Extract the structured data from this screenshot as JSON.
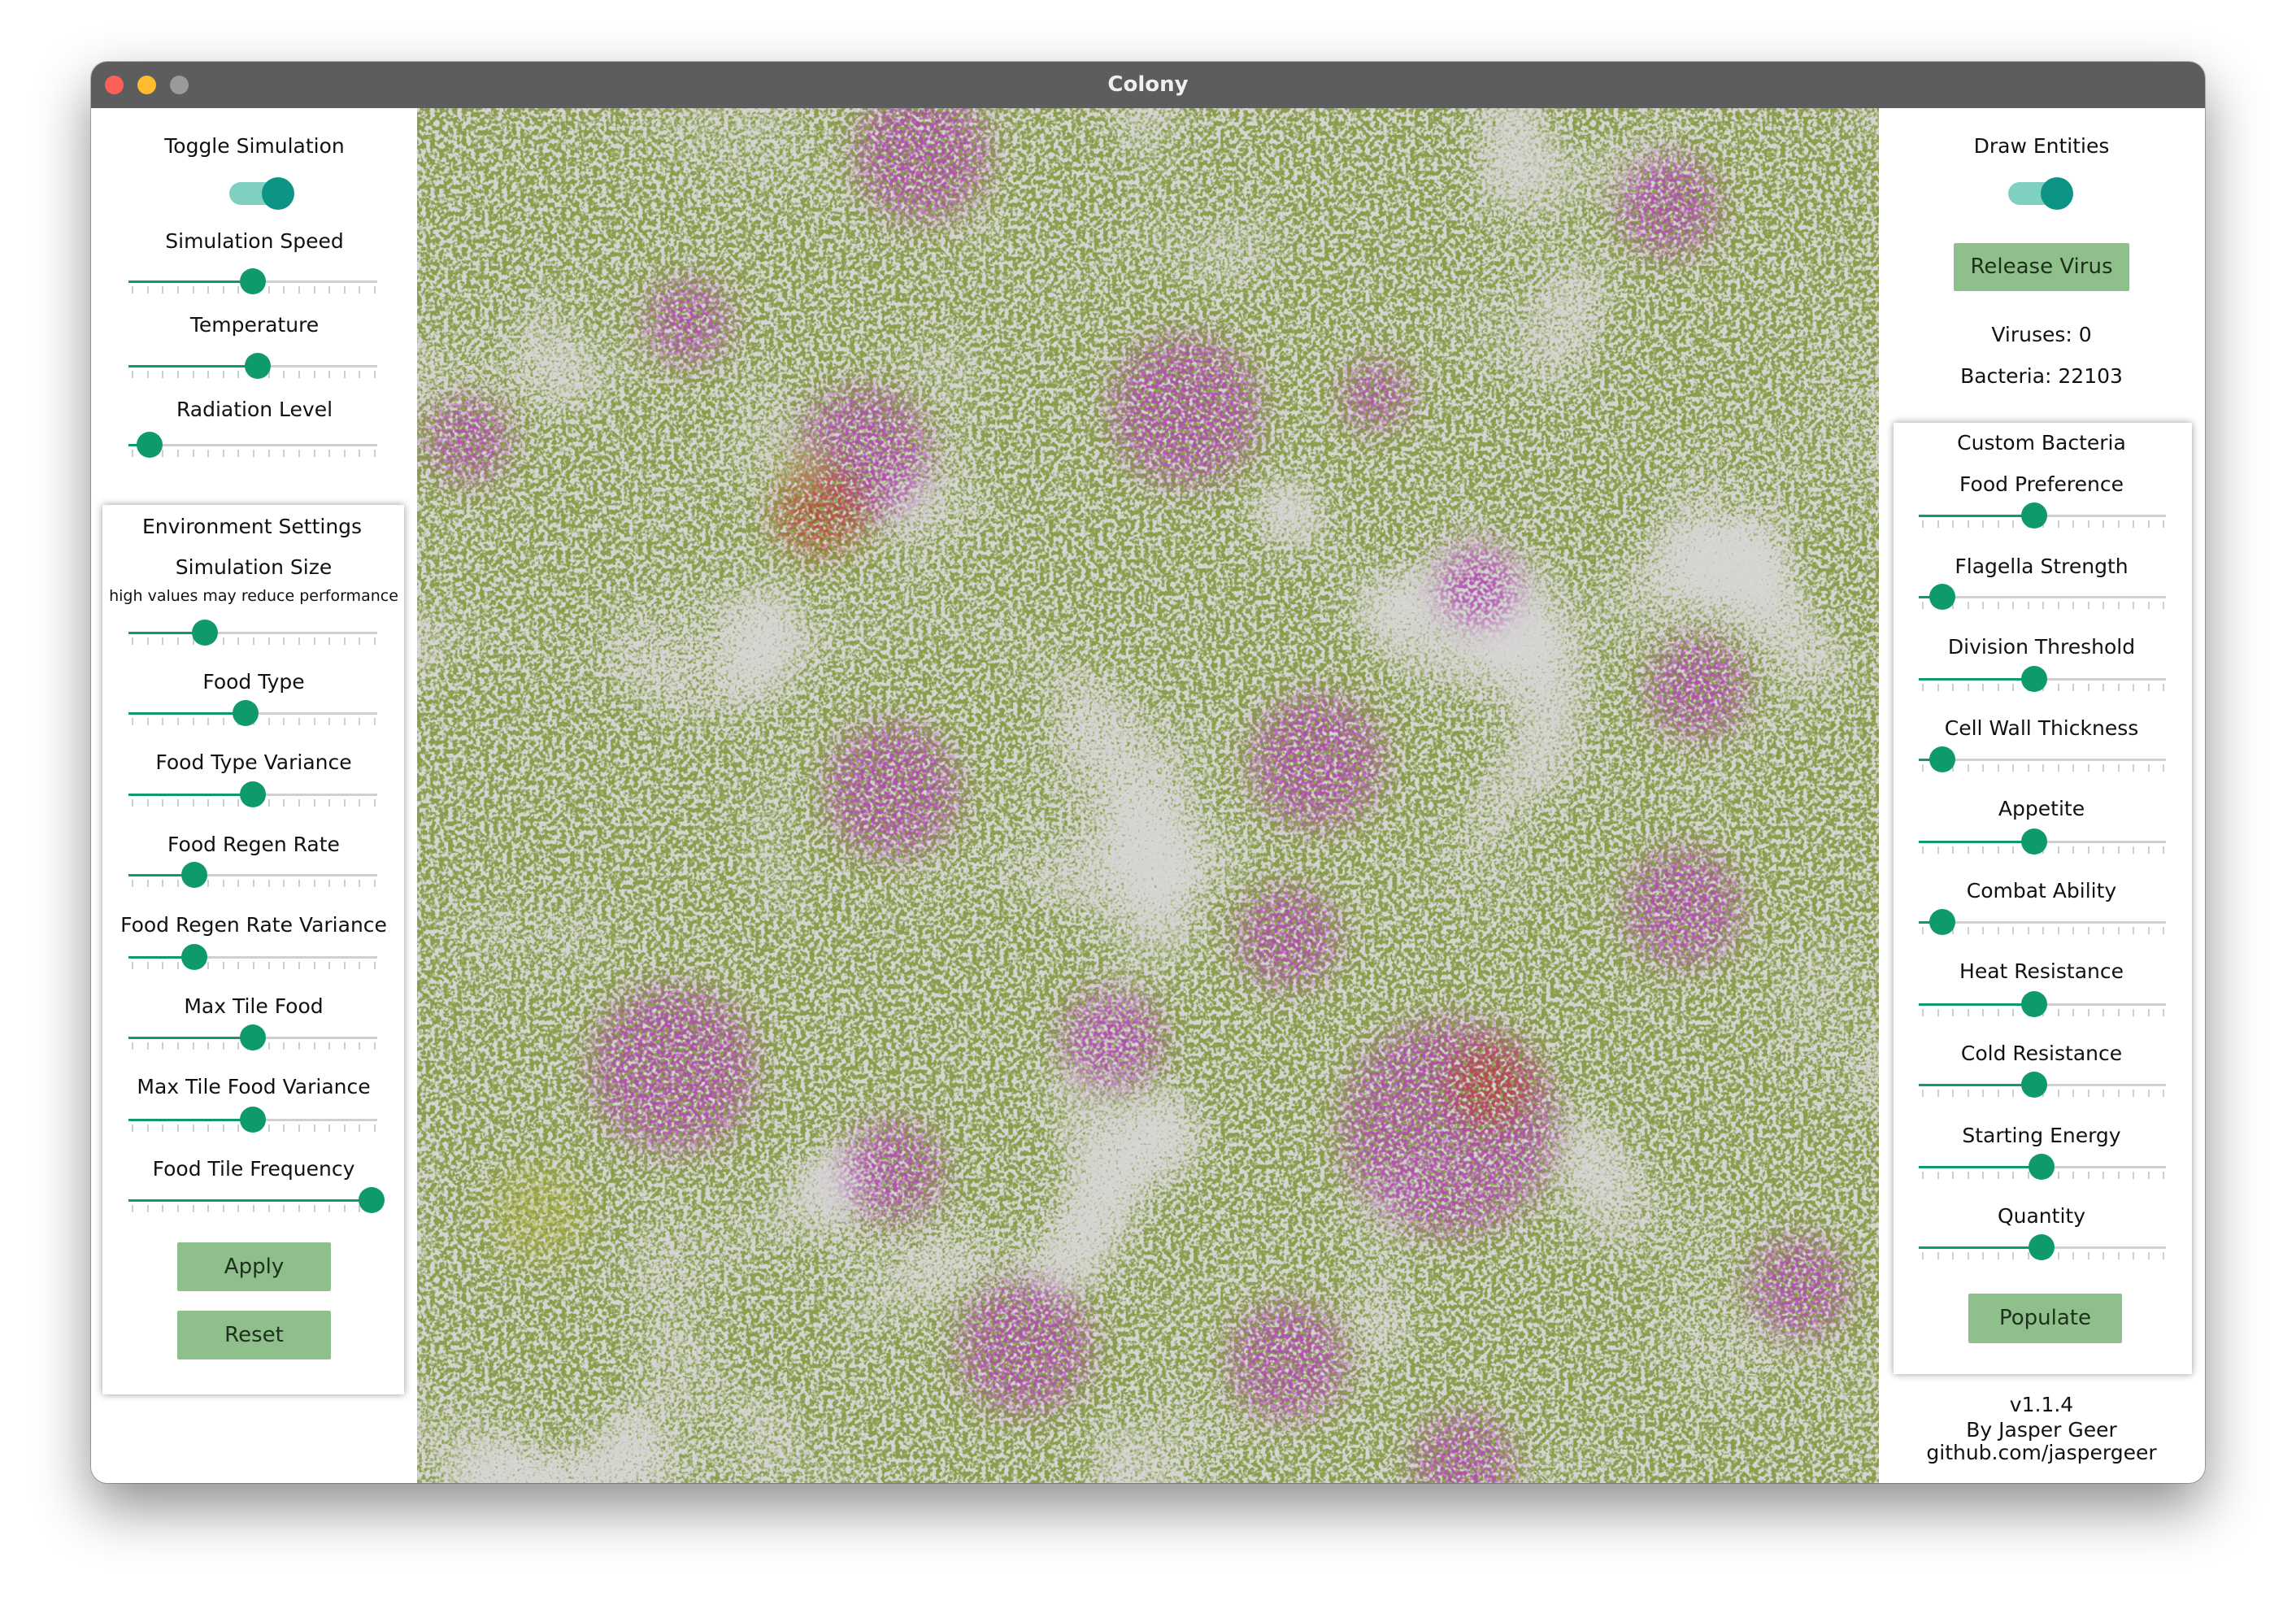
{
  "window": {
    "title": "Colony"
  },
  "left_panel": {
    "toggle_label": "Toggle Simulation",
    "sliders": [
      "Simulation Speed",
      "Temperature",
      "Radiation Level"
    ],
    "environment": {
      "title": "Environment Settings",
      "size_label": "Simulation Size",
      "size_note": "high values may reduce performance",
      "sliders": [
        "Food Type",
        "Food Type Variance",
        "Food Regen Rate",
        "Food Regen Rate Variance",
        "Max Tile Food",
        "Max Tile Food Variance",
        "Food Tile Frequency"
      ],
      "buttons": [
        "Apply",
        "Reset"
      ]
    }
  },
  "right_panel": {
    "toggle_label": "Draw Entities",
    "button": "Release Virus",
    "viruses": "Viruses: 0",
    "bacteria": "Bacteria: 22103",
    "custom": {
      "title": "Custom Bacteria",
      "sliders": [
        "Food Preference",
        "Flagella Strength",
        "Division Threshold",
        "Cell Wall Thickness",
        "Appetite",
        "Combat Ability",
        "Heat Resistance",
        "Cold Resistance",
        "Starting Energy",
        "Quantity"
      ],
      "button": "Populate"
    },
    "footer": [
      "v1.1.4",
      "By Jasper Geer",
      "github.com/jaspergeer"
    ]
  }
}
